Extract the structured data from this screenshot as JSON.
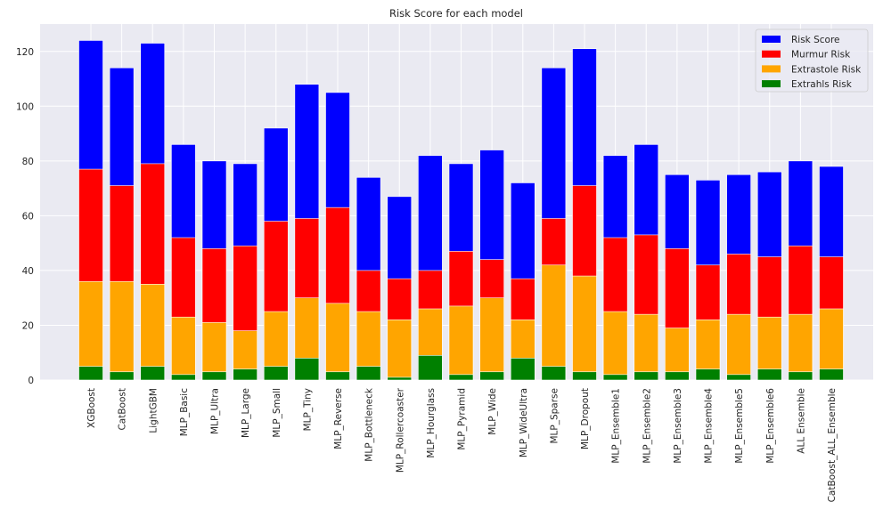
{
  "chart_data": {
    "type": "bar",
    "stacked": "overlay",
    "title": "Risk Score for each model",
    "xlabel": "",
    "ylabel": "",
    "ylim": [
      0,
      130
    ],
    "yticks": [
      0,
      20,
      40,
      60,
      80,
      100,
      120
    ],
    "grid": true,
    "legend_position": "top-right",
    "categories": [
      "XGBoost",
      "CatBoost",
      "LightGBM",
      "MLP_Basic",
      "MLP_Ultra",
      "MLP_Large",
      "MLP_Small",
      "MLP_Tiny",
      "MLP_Reverse",
      "MLP_Bottleneck",
      "MLP_Rollercoaster",
      "MLP_Hourglass",
      "MLP_Pyramid",
      "MLP_Wide",
      "MLP_WideUltra",
      "MLP_Sparse",
      "MLP_Dropout",
      "MLP_Ensemble1",
      "MLP_Ensemble2",
      "MLP_Ensemble3",
      "MLP_Ensemble4",
      "MLP_Ensemble5",
      "MLP_Ensemble6",
      "ALL Ensemble",
      "CatBoost_ALL_Ensemble"
    ],
    "series": [
      {
        "name": "Risk Score",
        "color": "#0000ff",
        "values": [
          124,
          114,
          123,
          86,
          80,
          79,
          92,
          108,
          105,
          74,
          67,
          82,
          79,
          84,
          72,
          114,
          121,
          82,
          86,
          75,
          73,
          75,
          76,
          80,
          78
        ]
      },
      {
        "name": "Murmur Risk",
        "color": "#ff0000",
        "values": [
          77,
          71,
          79,
          52,
          48,
          49,
          58,
          59,
          63,
          40,
          37,
          40,
          47,
          44,
          37,
          59,
          71,
          52,
          53,
          48,
          42,
          46,
          45,
          49,
          45
        ]
      },
      {
        "name": "Extrastole Risk",
        "color": "#ffa500",
        "values": [
          36,
          36,
          35,
          23,
          21,
          18,
          25,
          30,
          28,
          25,
          22,
          26,
          27,
          30,
          22,
          42,
          38,
          25,
          24,
          19,
          22,
          24,
          23,
          24,
          26
        ]
      },
      {
        "name": "Extrahls Risk",
        "color": "#008000",
        "values": [
          5,
          3,
          5,
          2,
          3,
          4,
          5,
          8,
          3,
          5,
          1,
          9,
          2,
          3,
          8,
          5,
          3,
          2,
          3,
          3,
          4,
          2,
          4,
          3,
          4
        ]
      }
    ]
  },
  "colors": {
    "plot_background": "#eaeaf2",
    "grid": "#ffffff"
  }
}
